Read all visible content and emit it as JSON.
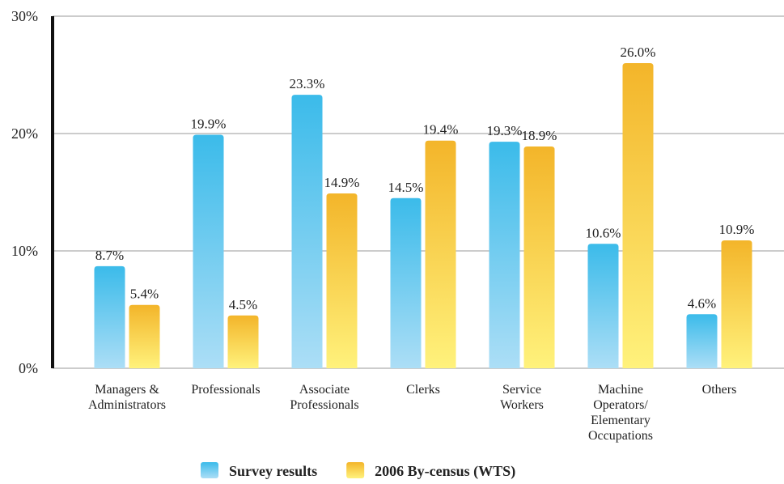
{
  "chart_data": {
    "type": "bar",
    "categories": [
      "Managers &\nAdministrators",
      "Professionals",
      "Associate\nProfessionals",
      "Clerks",
      "Service\nWorkers",
      "Machine\nOperators/\nElementary\nOccupations",
      "Others"
    ],
    "series": [
      {
        "name": "Survey results",
        "color": "#3bbbea",
        "values": [
          8.7,
          19.9,
          23.3,
          14.5,
          19.3,
          10.6,
          4.6
        ],
        "value_labels": [
          "8.7%",
          "19.9%",
          "23.3%",
          "14.5%",
          "19.3%",
          "10.6%",
          "4.6%"
        ]
      },
      {
        "name": "2006 By-census (WTS)",
        "color": "#f3b52a",
        "values": [
          5.4,
          4.5,
          14.9,
          19.4,
          18.9,
          26.0,
          10.9
        ],
        "value_labels": [
          "5.4%",
          "4.5%",
          "14.9%",
          "19.4%",
          "18.9%",
          "26.0%",
          "10.9%"
        ]
      }
    ],
    "ylim": [
      0,
      30
    ],
    "yticks": [
      {
        "value": 0,
        "label": "0%"
      },
      {
        "value": 10,
        "label": "10%"
      },
      {
        "value": 20,
        "label": "20%"
      },
      {
        "value": 30,
        "label": "30%"
      }
    ],
    "grid": true
  }
}
